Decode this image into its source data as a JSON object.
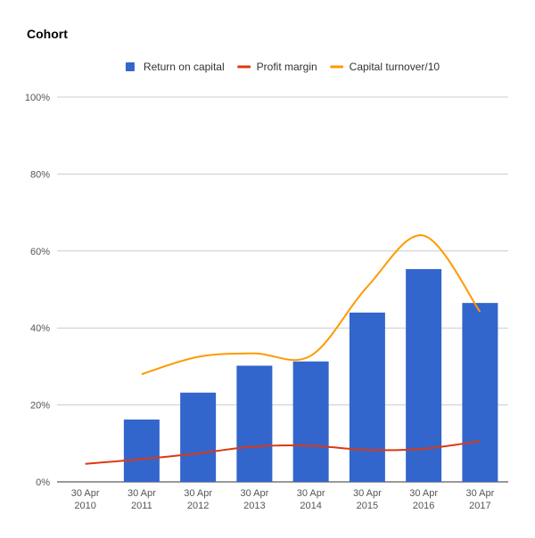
{
  "chart_data": {
    "type": "bar",
    "title": "Cohort",
    "xlabel": "",
    "ylabel": "",
    "categories": [
      [
        "30 Apr",
        "2010"
      ],
      [
        "30 Apr",
        "2011"
      ],
      [
        "30 Apr",
        "2012"
      ],
      [
        "30 Apr",
        "2013"
      ],
      [
        "30 Apr",
        "2014"
      ],
      [
        "30 Apr",
        "2015"
      ],
      [
        "30 Apr",
        "2016"
      ],
      [
        "30 Apr",
        "2017"
      ]
    ],
    "ylim": [
      0,
      100
    ],
    "yticks": [
      "0%",
      "20%",
      "40%",
      "60%",
      "80%",
      "100%"
    ],
    "grid": true,
    "legend_position": "top",
    "series": [
      {
        "name": "Return on capital",
        "type": "bar",
        "color": "#3366cc",
        "values": [
          null,
          16.2,
          23.2,
          30.2,
          31.3,
          44.0,
          55.3,
          46.5
        ]
      },
      {
        "name": "Profit margin",
        "type": "line",
        "color": "#dc3912",
        "values": [
          4.7,
          5.9,
          7.4,
          9.2,
          9.4,
          8.3,
          8.6,
          10.6
        ]
      },
      {
        "name": "Capital turnover/10",
        "type": "line",
        "color": "#ff9900",
        "values": [
          null,
          28.0,
          32.5,
          33.4,
          32.8,
          50.7,
          64.0,
          44.2
        ]
      }
    ]
  }
}
